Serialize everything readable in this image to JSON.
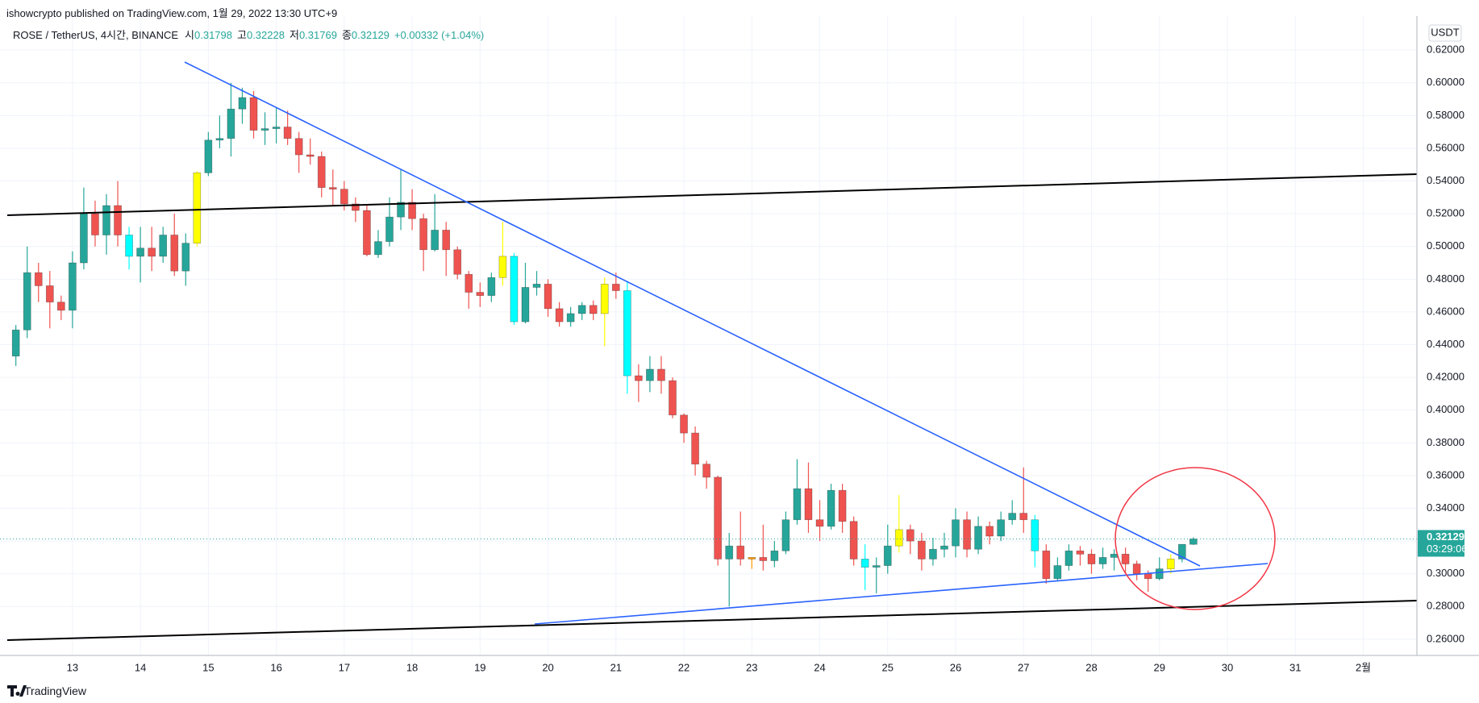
{
  "header": {
    "published": "ishowcrypto published on TradingView.com, 1월 29, 2022 13:30 UTC+9",
    "brand": "TradingView"
  },
  "chart_data": {
    "type": "candlestick",
    "symbol": "ROSE / TetherUS, 4시간, BINANCE",
    "ohlc_labels": [
      "시",
      "고",
      "저",
      "종"
    ],
    "change": "+0.00332 (+1.04%)",
    "currency": "USDT",
    "countdown": "03:29:06",
    "x": [
      12.1667,
      12.3333,
      12.5,
      12.6667,
      12.8333,
      13,
      13.1667,
      13.3333,
      13.5,
      13.6667,
      13.8333,
      14,
      14.1667,
      14.3333,
      14.5,
      14.6667,
      14.8333,
      15,
      15.1667,
      15.3333,
      15.5,
      15.6667,
      15.8333,
      16,
      16.1667,
      16.3333,
      16.5,
      16.6667,
      16.8333,
      17,
      17.1667,
      17.3333,
      17.5,
      17.6667,
      17.8333,
      18,
      18.1667,
      18.3333,
      18.5,
      18.6667,
      18.8333,
      19,
      19.1667,
      19.3333,
      19.5,
      19.6667,
      19.8333,
      20,
      20.1667,
      20.3333,
      20.5,
      20.6667,
      20.8333,
      21,
      21.1667,
      21.3333,
      21.5,
      21.6667,
      21.8333,
      22,
      22.1667,
      22.3333,
      22.5,
      22.6667,
      22.8333,
      23,
      23.1667,
      23.3333,
      23.5,
      23.6667,
      23.8333,
      24,
      24.1667,
      24.3333,
      24.5,
      24.6667,
      24.8333,
      25,
      25.1667,
      25.3333,
      25.5,
      25.6667,
      25.8333,
      26,
      26.1667,
      26.3333,
      26.5,
      26.6667,
      26.8333,
      27,
      27.1667,
      27.3333,
      27.5,
      27.6667,
      27.8333,
      28,
      28.1667,
      28.3333,
      28.5,
      28.6667,
      28.8333,
      29,
      29.1667,
      29.3333,
      29.5
    ],
    "open": [
      0.433,
      0.449,
      0.484,
      0.476,
      0.466,
      0.461,
      0.49,
      0.52,
      0.507,
      0.525,
      0.507,
      0.494,
      0.499,
      0.494,
      0.507,
      0.485,
      0.502,
      0.545,
      0.565,
      0.566,
      0.584,
      0.591,
      0.571,
      0.572,
      0.573,
      0.566,
      0.556,
      0.555,
      0.536,
      0.535,
      0.526,
      0.522,
      0.495,
      0.503,
      0.518,
      0.527,
      0.517,
      0.498,
      0.51,
      0.498,
      0.483,
      0.472,
      0.47,
      0.481,
      0.494,
      0.454,
      0.475,
      0.477,
      0.462,
      0.454,
      0.459,
      0.464,
      0.459,
      0.477,
      0.473,
      0.421,
      0.418,
      0.425,
      0.418,
      0.397,
      0.386,
      0.367,
      0.359,
      0.309,
      0.317,
      0.309,
      0.31,
      0.308,
      0.314,
      0.333,
      0.352,
      0.333,
      0.329,
      0.351,
      0.332,
      0.309,
      0.304,
      0.305,
      0.317,
      0.327,
      0.32,
      0.309,
      0.315,
      0.317,
      0.333,
      0.315,
      0.329,
      0.323,
      0.333,
      0.337,
      0.333,
      0.314,
      0.297,
      0.305,
      0.314,
      0.312,
      0.306,
      0.31,
      0.312,
      0.306,
      0.3,
      0.297,
      0.303,
      0.309,
      0.31798
    ],
    "high": [
      0.452,
      0.5,
      0.49,
      0.485,
      0.47,
      0.497,
      0.536,
      0.528,
      0.532,
      0.54,
      0.512,
      0.512,
      0.512,
      0.512,
      0.52,
      0.508,
      0.546,
      0.57,
      0.58,
      0.6,
      0.597,
      0.595,
      0.582,
      0.585,
      0.583,
      0.57,
      0.566,
      0.558,
      0.547,
      0.54,
      0.53,
      0.525,
      0.51,
      0.53,
      0.547,
      0.535,
      0.52,
      0.532,
      0.515,
      0.5,
      0.485,
      0.478,
      0.484,
      0.515,
      0.496,
      0.49,
      0.485,
      0.48,
      0.466,
      0.463,
      0.466,
      0.467,
      0.481,
      0.484,
      0.479,
      0.428,
      0.433,
      0.433,
      0.42,
      0.398,
      0.39,
      0.369,
      0.36,
      0.325,
      0.338,
      0.31,
      0.33,
      0.32,
      0.338,
      0.37,
      0.368,
      0.345,
      0.355,
      0.355,
      0.335,
      0.318,
      0.31,
      0.33,
      0.348,
      0.33,
      0.325,
      0.322,
      0.325,
      0.34,
      0.338,
      0.335,
      0.332,
      0.338,
      0.345,
      0.365,
      0.336,
      0.318,
      0.31,
      0.318,
      0.317,
      0.315,
      0.316,
      0.315,
      0.316,
      0.308,
      0.302,
      0.31,
      0.312,
      0.318,
      0.32228
    ],
    "low": [
      0.427,
      0.444,
      0.466,
      0.45,
      0.455,
      0.45,
      0.486,
      0.5,
      0.495,
      0.5,
      0.486,
      0.478,
      0.485,
      0.49,
      0.482,
      0.476,
      0.5,
      0.543,
      0.56,
      0.555,
      0.575,
      0.566,
      0.562,
      0.563,
      0.562,
      0.545,
      0.55,
      0.53,
      0.525,
      0.522,
      0.515,
      0.494,
      0.493,
      0.5,
      0.51,
      0.51,
      0.485,
      0.497,
      0.482,
      0.48,
      0.462,
      0.463,
      0.466,
      0.476,
      0.452,
      0.453,
      0.47,
      0.457,
      0.451,
      0.451,
      0.455,
      0.455,
      0.439,
      0.468,
      0.41,
      0.405,
      0.411,
      0.41,
      0.395,
      0.38,
      0.36,
      0.352,
      0.305,
      0.28,
      0.305,
      0.303,
      0.302,
      0.304,
      0.312,
      0.33,
      0.325,
      0.32,
      0.327,
      0.325,
      0.305,
      0.29,
      0.288,
      0.3,
      0.313,
      0.312,
      0.302,
      0.305,
      0.31,
      0.31,
      0.31,
      0.312,
      0.318,
      0.32,
      0.33,
      0.325,
      0.304,
      0.294,
      0.296,
      0.302,
      0.305,
      0.3,
      0.303,
      0.302,
      0.3,
      0.296,
      0.289,
      0.296,
      0.3,
      0.307,
      0.31769
    ],
    "close": [
      0.449,
      0.484,
      0.476,
      0.466,
      0.461,
      0.49,
      0.52,
      0.507,
      0.525,
      0.507,
      0.494,
      0.499,
      0.494,
      0.507,
      0.485,
      0.502,
      0.545,
      0.565,
      0.566,
      0.584,
      0.591,
      0.571,
      0.572,
      0.573,
      0.566,
      0.556,
      0.555,
      0.536,
      0.535,
      0.526,
      0.522,
      0.495,
      0.503,
      0.518,
      0.527,
      0.517,
      0.498,
      0.51,
      0.498,
      0.483,
      0.472,
      0.47,
      0.481,
      0.494,
      0.454,
      0.475,
      0.477,
      0.462,
      0.454,
      0.459,
      0.464,
      0.459,
      0.477,
      0.473,
      0.421,
      0.418,
      0.425,
      0.418,
      0.397,
      0.386,
      0.367,
      0.359,
      0.309,
      0.317,
      0.309,
      0.31,
      0.308,
      0.314,
      0.333,
      0.352,
      0.333,
      0.329,
      0.351,
      0.332,
      0.309,
      0.304,
      0.305,
      0.317,
      0.327,
      0.32,
      0.309,
      0.315,
      0.317,
      0.333,
      0.315,
      0.329,
      0.323,
      0.333,
      0.337,
      0.333,
      0.314,
      0.297,
      0.305,
      0.314,
      0.312,
      0.306,
      0.31,
      0.312,
      0.306,
      0.3,
      0.297,
      0.303,
      0.309,
      0.318,
      0.32129
    ],
    "colors": [
      "#26a69a",
      "#26a69a",
      "#ef5350",
      "#ef5350",
      "#ef5350",
      "#26a69a",
      "#26a69a",
      "#ef5350",
      "#26a69a",
      "#ef5350",
      "#00ffff",
      "#26a69a",
      "#ef5350",
      "#26a69a",
      "#ef5350",
      "#26a69a",
      "#ffff00",
      "#26a69a",
      "#26a69a",
      "#26a69a",
      "#26a69a",
      "#ef5350",
      "#26a69a",
      "#26a69a",
      "#ef5350",
      "#ef5350",
      "#ef5350",
      "#ef5350",
      "#ef5350",
      "#ef5350",
      "#ef5350",
      "#ef5350",
      "#26a69a",
      "#26a69a",
      "#26a69a",
      "#ef5350",
      "#ef5350",
      "#26a69a",
      "#ef5350",
      "#ef5350",
      "#ef5350",
      "#ef5350",
      "#26a69a",
      "#ffff00",
      "#00ffff",
      "#26a69a",
      "#26a69a",
      "#ef5350",
      "#ef5350",
      "#26a69a",
      "#26a69a",
      "#ef5350",
      "#ffff00",
      "#ef5350",
      "#00ffff",
      "#ef5350",
      "#26a69a",
      "#ef5350",
      "#ef5350",
      "#ef5350",
      "#ef5350",
      "#ef5350",
      "#ef5350",
      "#26a69a",
      "#ef5350",
      "#ff9800",
      "#ef5350",
      "#26a69a",
      "#26a69a",
      "#26a69a",
      "#ef5350",
      "#ef5350",
      "#26a69a",
      "#ef5350",
      "#ef5350",
      "#00ffff",
      "#26a69a",
      "#26a69a",
      "#ffff00",
      "#ef5350",
      "#ef5350",
      "#26a69a",
      "#26a69a",
      "#26a69a",
      "#ef5350",
      "#26a69a",
      "#ef5350",
      "#26a69a",
      "#26a69a",
      "#ef5350",
      "#00ffff",
      "#ef5350",
      "#26a69a",
      "#26a69a",
      "#ef5350",
      "#ef5350",
      "#26a69a",
      "#26a69a",
      "#ef5350",
      "#ef5350",
      "#ef5350",
      "#26a69a",
      "#ffff00",
      "#26a69a",
      "#26a69a"
    ],
    "xlim": [
      12.04,
      32.79
    ],
    "xticks": [
      13,
      14,
      15,
      16,
      17,
      18,
      19,
      20,
      21,
      22,
      23,
      24,
      25,
      26,
      27,
      28,
      29,
      30,
      31,
      {
        "value": 32,
        "label": "2월"
      }
    ],
    "ylim": [
      0.2501,
      0.6378
    ],
    "yticks": [
      {
        "value": 0.26,
        "label": "0.26000"
      },
      {
        "value": 0.28,
        "label": "0.28000"
      },
      {
        "value": 0.3,
        "label": "0.30000"
      },
      {
        "value": 0.32,
        "label": "0.32000"
      },
      {
        "value": 0.34,
        "label": "0.34000"
      },
      {
        "value": 0.36,
        "label": "0.36000"
      },
      {
        "value": 0.38,
        "label": "0.38000"
      },
      {
        "value": 0.4,
        "label": "0.40000"
      },
      {
        "value": 0.42,
        "label": "0.42000"
      },
      {
        "value": 0.44,
        "label": "0.44000"
      },
      {
        "value": 0.46,
        "label": "0.46000"
      },
      {
        "value": 0.48,
        "label": "0.48000"
      },
      {
        "value": 0.5,
        "label": "0.50000"
      },
      {
        "value": 0.52,
        "label": "0.52000"
      },
      {
        "value": 0.54,
        "label": "0.54000"
      },
      {
        "value": 0.56,
        "label": "0.56000"
      },
      {
        "value": 0.58,
        "label": "0.58000"
      },
      {
        "value": 0.6,
        "label": "0.60000"
      },
      {
        "value": 0.62,
        "label": "0.62000"
      }
    ],
    "grid": true
  }
}
